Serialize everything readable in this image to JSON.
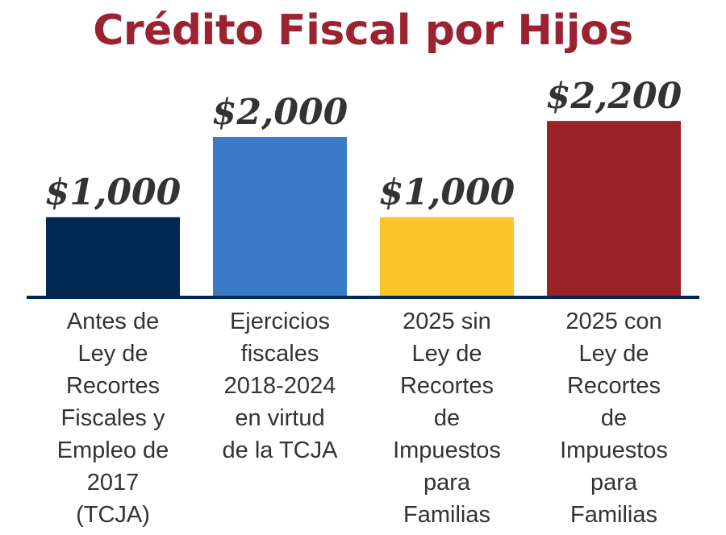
{
  "chart_data": {
    "type": "bar",
    "title": "Crédito Fiscal por Hijos",
    "categories": [
      [
        "Antes de",
        "Ley de",
        "Recortes",
        "Fiscales y",
        "Empleo de",
        "2017",
        "(TCJA)"
      ],
      [
        "Ejercicios",
        "fiscales",
        "2018-2024",
        "en virtud",
        "de la TCJA"
      ],
      [
        "2025 sin",
        "Ley de",
        "Recortes",
        "de",
        "Impuestos",
        "para",
        "Familias"
      ],
      [
        "2025 con",
        "Ley de",
        "Recortes",
        "de",
        "Impuestos",
        "para",
        "Familias"
      ]
    ],
    "values": [
      1000,
      2000,
      1000,
      2200
    ],
    "data_labels": [
      "$1,000",
      "$2,000",
      "$1,000",
      "$2,200"
    ],
    "colors": [
      "#002855",
      "#3a7bc8",
      "#fbc52a",
      "#9b2228"
    ],
    "axis_color": "#002855",
    "ylim": [
      0,
      2200
    ],
    "grid": false
  }
}
